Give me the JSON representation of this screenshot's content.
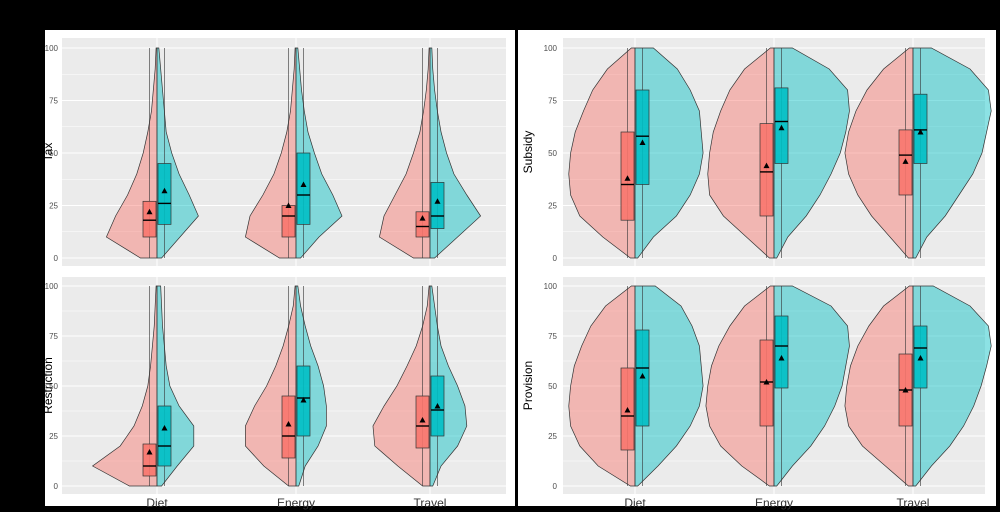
{
  "colors": {
    "group_a": "#F8766D",
    "group_b": "#00BFC4",
    "panel_bg": "#EBEBEB",
    "grid": "#FFFFFF",
    "background": "#000000"
  },
  "chart_data": [
    {
      "type": "violin",
      "ylabel": "Tax",
      "ylim": [
        0,
        100
      ],
      "yticks": [
        0,
        25,
        50,
        75,
        100
      ],
      "categories": [
        "Diet",
        "Energy",
        "Travel"
      ],
      "show_x_labels": false,
      "grid": true,
      "groups": [
        {
          "color": "#F8766D",
          "box": [
            [
              10,
              18,
              27
            ],
            [
              10,
              20,
              25
            ],
            [
              10,
              15,
              22
            ]
          ],
          "mean": [
            22,
            25,
            19
          ]
        },
        {
          "color": "#00BFC4",
          "box": [
            [
              16,
              26,
              45
            ],
            [
              16,
              30,
              50
            ],
            [
              14,
              20,
              36
            ]
          ],
          "mean": [
            32,
            35,
            27
          ]
        }
      ]
    },
    {
      "type": "violin",
      "ylabel": "Subsidy",
      "ylim": [
        0,
        100
      ],
      "yticks": [
        0,
        25,
        50,
        75,
        100
      ],
      "categories": [
        "Diet",
        "Energy",
        "Travel"
      ],
      "show_x_labels": false,
      "grid": true,
      "groups": [
        {
          "color": "#F8766D",
          "box": [
            [
              18,
              35,
              60
            ],
            [
              20,
              41,
              64
            ],
            [
              30,
              49,
              61
            ]
          ],
          "mean": [
            38,
            44,
            46
          ]
        },
        {
          "color": "#00BFC4",
          "box": [
            [
              35,
              58,
              80
            ],
            [
              45,
              65,
              81
            ],
            [
              45,
              61,
              78
            ]
          ],
          "mean": [
            55,
            62,
            60
          ]
        }
      ]
    },
    {
      "type": "violin",
      "ylabel": "Restriction",
      "ylim": [
        0,
        100
      ],
      "yticks": [
        0,
        25,
        50,
        75,
        100
      ],
      "categories": [
        "Diet",
        "Energy",
        "Travel"
      ],
      "show_x_labels": true,
      "grid": true,
      "groups": [
        {
          "color": "#F8766D",
          "box": [
            [
              5,
              10,
              21
            ],
            [
              14,
              25,
              45
            ],
            [
              19,
              30,
              45
            ]
          ],
          "mean": [
            17,
            31,
            33
          ]
        },
        {
          "color": "#00BFC4",
          "box": [
            [
              10,
              20,
              40
            ],
            [
              25,
              44,
              60
            ],
            [
              25,
              38,
              55
            ]
          ],
          "mean": [
            29,
            43,
            40
          ]
        }
      ]
    },
    {
      "type": "violin",
      "ylabel": "Provision",
      "ylim": [
        0,
        100
      ],
      "yticks": [
        0,
        25,
        50,
        75,
        100
      ],
      "categories": [
        "Diet",
        "Energy",
        "Travel"
      ],
      "show_x_labels": true,
      "grid": true,
      "groups": [
        {
          "color": "#F8766D",
          "box": [
            [
              18,
              35,
              59
            ],
            [
              30,
              52,
              73
            ],
            [
              30,
              48,
              66
            ]
          ],
          "mean": [
            38,
            52,
            48
          ]
        },
        {
          "color": "#00BFC4",
          "box": [
            [
              30,
              59,
              78
            ],
            [
              49,
              70,
              85
            ],
            [
              49,
              69,
              80
            ]
          ],
          "mean": [
            55,
            64,
            64
          ]
        }
      ]
    }
  ]
}
